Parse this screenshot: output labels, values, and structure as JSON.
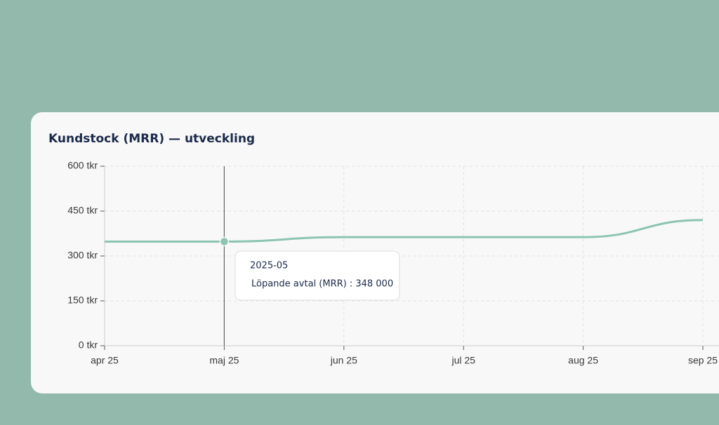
{
  "chart_data": {
    "type": "line",
    "title": "Kundstock (MRR) — utveckling",
    "categories": [
      "apr 25",
      "maj 25",
      "jun 25",
      "jul 25",
      "aug 25",
      "sep 25"
    ],
    "series": [
      {
        "name": "Löpande avtal (MRR)",
        "color": "#8cc5b0",
        "values": [
          348000,
          348000,
          363000,
          363000,
          363000,
          420000
        ]
      }
    ],
    "ylim": [
      0,
      600000
    ],
    "yticks": [
      {
        "value": 0,
        "label": "0 tkr"
      },
      {
        "value": 150000,
        "label": "150 tkr"
      },
      {
        "value": 300000,
        "label": "300 tkr"
      },
      {
        "value": 450000,
        "label": "450 tkr"
      },
      {
        "value": 600000,
        "label": "600 tkr"
      }
    ],
    "grid": true,
    "tooltip": {
      "index": 1,
      "title": "2025-05",
      "text": "Löpande avtal (MRR) : 348 000"
    }
  }
}
